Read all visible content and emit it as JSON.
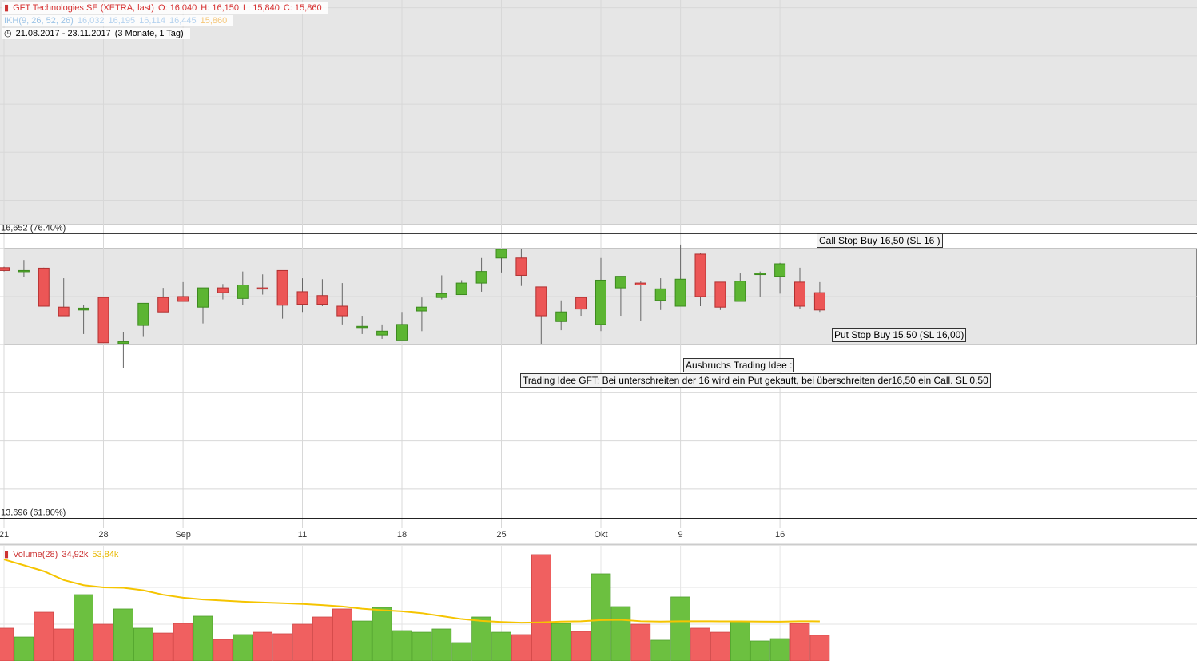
{
  "chart_data": [
    {
      "type": "candlestick",
      "title": "GFT Technologies SE (XETRA, last)",
      "ohlc_labels": [
        "O: 16,040",
        "H: 16,150",
        "L: 15,840",
        "C: 15,860"
      ],
      "indicator": "IKH(9, 26, 52, 26)",
      "indicator_values": [
        "16,032",
        "16,195",
        "16,114",
        "16,445",
        "15,860"
      ],
      "period": "21.08.2017 - 23.11.2017",
      "period_note": "(3 Monate, 1 Tag)",
      "categories": [
        "21",
        null,
        null,
        null,
        null,
        "28",
        null,
        null,
        null,
        "Sep",
        null,
        null,
        null,
        null,
        null,
        "11",
        null,
        null,
        null,
        null,
        "18",
        null,
        null,
        null,
        null,
        "25",
        null,
        null,
        null,
        null,
        "Okt",
        null,
        null,
        null,
        "9",
        null,
        null,
        null,
        null,
        "16",
        null,
        null
      ],
      "open": [
        16.3,
        16.26,
        16.295,
        15.89,
        15.86,
        15.99,
        15.51,
        15.7,
        15.99,
        16.0,
        15.89,
        16.09,
        15.98,
        16.09,
        16.27,
        16.05,
        16.01,
        15.9,
        15.68,
        15.6,
        15.54,
        15.85,
        15.99,
        16.02,
        16.14,
        16.4,
        16.4,
        16.1,
        15.74,
        15.99,
        15.71,
        16.09,
        16.14,
        15.96,
        15.9,
        16.44,
        16.15,
        15.95,
        16.23,
        16.21,
        16.15,
        16.04
      ],
      "high": [
        16.31,
        16.38,
        16.3,
        16.19,
        15.91,
        15.99,
        15.63,
        15.93,
        16.09,
        16.15,
        16.09,
        16.13,
        16.26,
        16.23,
        16.27,
        16.19,
        16.18,
        16.14,
        15.8,
        15.71,
        15.84,
        15.99,
        16.22,
        16.17,
        16.4,
        16.49,
        16.49,
        16.1,
        15.96,
        15.99,
        16.4,
        16.21,
        16.16,
        16.19,
        16.54,
        16.45,
        16.15,
        16.24,
        16.26,
        16.35,
        16.3,
        16.15
      ],
      "low": [
        16.26,
        16.2,
        15.9,
        15.8,
        15.61,
        15.52,
        15.26,
        15.58,
        15.84,
        15.95,
        15.72,
        15.97,
        15.91,
        16.02,
        15.77,
        15.84,
        15.9,
        15.71,
        15.61,
        15.56,
        15.54,
        15.64,
        15.97,
        16.02,
        16.05,
        16.25,
        16.11,
        15.51,
        15.65,
        15.8,
        15.64,
        15.8,
        15.75,
        15.86,
        15.9,
        15.9,
        15.86,
        15.95,
        16.0,
        16.03,
        15.87,
        15.84
      ],
      "close": [
        16.27,
        16.27,
        15.9,
        15.8,
        15.88,
        15.52,
        15.53,
        15.93,
        15.84,
        15.95,
        16.09,
        16.04,
        16.12,
        16.08,
        15.91,
        15.92,
        15.92,
        15.8,
        15.69,
        15.64,
        15.71,
        15.89,
        16.03,
        16.14,
        16.26,
        16.49,
        16.22,
        15.8,
        15.84,
        15.87,
        16.17,
        16.21,
        16.12,
        16.08,
        16.18,
        16.0,
        15.89,
        16.16,
        16.24,
        16.34,
        15.9,
        15.86
      ],
      "up_color": "#5cb532",
      "down_color": "#ec5656",
      "ylim": [
        13.6,
        19.08
      ],
      "grid_levels": [
        14,
        14.5,
        15,
        15.5,
        16,
        16.5,
        17,
        17.5,
        18,
        18.5,
        19
      ],
      "levels": [
        {
          "value": 16.652,
          "label": "16,652 (76.40%)"
        },
        {
          "value": 13.696,
          "label": "13,696 (61.80%)"
        }
      ],
      "box": [
        15.5,
        16.5
      ],
      "notes": [
        "Call Stop Buy 16,50 (SL 16 )",
        "Put Stop Buy 15,50 (SL 16,00)",
        "Ausbruchs Trading Idee :",
        "Trading Idee GFT: Bei unterschreiten der 16 wird ein Put gekauft, bei überschreiten der16,50 ein Call. SL 0,50"
      ]
    },
    {
      "type": "volume",
      "title": "Volume(28)",
      "value_label": "34,92k",
      "ma_label": "53,84k",
      "values": [
        44.6,
        32.6,
        66.3,
        43.5,
        90.2,
        50.0,
        70.7,
        44.6,
        38.0,
        51.1,
        60.9,
        29.3,
        35.9,
        39.1,
        37.0,
        50.0,
        59.8,
        70.7,
        54.3,
        72.8,
        41.3,
        39.1,
        43.5,
        25.0,
        59.8,
        39.1,
        35.9,
        144.6,
        51.1,
        40.2,
        118.5,
        73.9,
        50.0,
        28.3,
        87.0,
        44.6,
        39.1,
        53.3,
        27.2,
        30.4,
        51.1,
        34.92
      ],
      "ma": {
        "color": "#f5c400",
        "values": [
          138,
          130,
          122,
          110,
          103,
          100,
          99.5,
          96,
          90,
          86,
          83.5,
          82,
          80.5,
          79.5,
          78.5,
          77.5,
          76,
          74,
          71,
          69,
          67.5,
          65,
          61,
          57,
          54.5,
          53,
          52,
          52.5,
          53.5,
          54,
          55.5,
          56,
          54,
          53.5,
          54,
          54,
          53.8,
          53.8,
          53.5,
          53.4,
          54,
          53.84
        ]
      },
      "ylim": [
        0,
        156.5
      ],
      "grid_levels": [
        50,
        100
      ]
    }
  ]
}
